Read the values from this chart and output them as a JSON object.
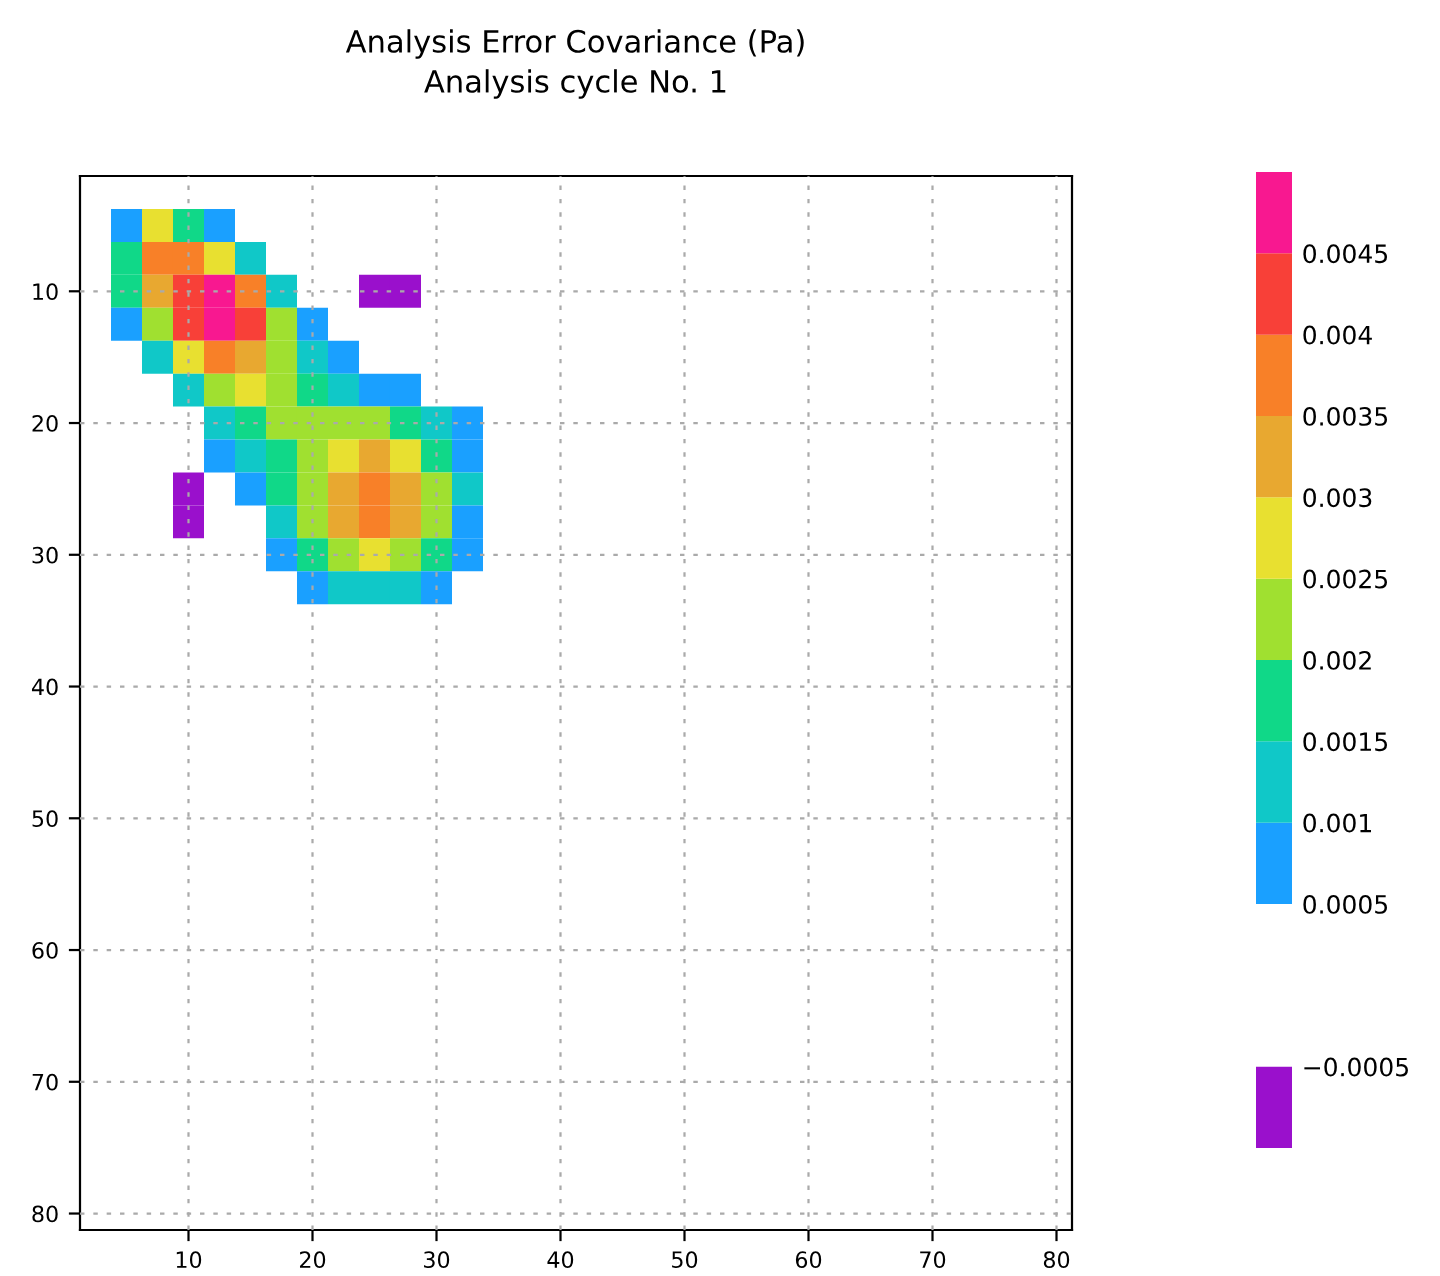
{
  "chart_data": {
    "type": "heatmap",
    "title": "Analysis Error Covariance (Pa)",
    "subtitle": "Analysis cycle No. 1",
    "x": [
      5,
      7.5,
      10,
      12.5,
      15,
      17.5,
      20,
      22.5,
      25,
      27.5,
      30,
      32.5
    ],
    "y": [
      5,
      7.5,
      10,
      12.5,
      15,
      17.5,
      20,
      22.5,
      25,
      27.5,
      30,
      32.5
    ],
    "xlim": [
      1.25,
      81.25
    ],
    "xticks": [
      10,
      20,
      30,
      40,
      50,
      60,
      70,
      80
    ],
    "ylim": [
      81.25,
      1.25
    ],
    "yticks": [
      10,
      20,
      30,
      40,
      50,
      60,
      70,
      80
    ],
    "cells": [
      [
        0.00075,
        0.00275,
        0.00175,
        0.00075,
        null,
        null,
        null,
        null,
        null,
        null,
        null,
        null
      ],
      [
        0.00175,
        0.00375,
        0.00375,
        0.00275,
        0.00125,
        null,
        null,
        null,
        null,
        null,
        null,
        null
      ],
      [
        0.00175,
        0.00325,
        0.00425,
        0.00475,
        0.00375,
        0.00125,
        null,
        null,
        -0.00075,
        -0.00075,
        null,
        null
      ],
      [
        0.00075,
        0.00225,
        0.00425,
        0.00475,
        0.00425,
        0.00225,
        0.00075,
        null,
        null,
        null,
        null,
        null
      ],
      [
        null,
        0.00125,
        0.00275,
        0.00375,
        0.00325,
        0.00225,
        0.00125,
        0.00075,
        null,
        null,
        null,
        null
      ],
      [
        null,
        null,
        0.00125,
        0.00225,
        0.00275,
        0.00225,
        0.00175,
        0.00125,
        0.00075,
        0.00075,
        null,
        null
      ],
      [
        null,
        null,
        null,
        0.00125,
        0.00175,
        0.00225,
        0.00225,
        0.00225,
        0.00225,
        0.00175,
        0.00125,
        0.00075
      ],
      [
        null,
        null,
        null,
        0.00075,
        0.00125,
        0.00175,
        0.00225,
        0.00275,
        0.00325,
        0.00275,
        0.00175,
        0.00075
      ],
      [
        null,
        null,
        -0.00075,
        null,
        0.00075,
        0.00175,
        0.00225,
        0.00325,
        0.00375,
        0.00325,
        0.00225,
        0.00125
      ],
      [
        null,
        null,
        -0.00075,
        null,
        null,
        0.00125,
        0.00225,
        0.00325,
        0.00375,
        0.00325,
        0.00225,
        0.00075
      ],
      [
        null,
        null,
        null,
        null,
        null,
        0.00075,
        0.00175,
        0.00225,
        0.00275,
        0.00225,
        0.00175,
        0.00075
      ],
      [
        null,
        null,
        null,
        null,
        null,
        null,
        0.00075,
        0.00125,
        0.00125,
        0.00125,
        0.00075,
        null
      ]
    ],
    "clim": [
      -0.001,
      0.005
    ],
    "cticks": [
      {
        "value": -0.0005,
        "label": "−0.0005"
      },
      0.0005,
      0.001,
      0.0015,
      0.002,
      0.0025,
      0.003,
      0.0035,
      0.004,
      0.0045
    ],
    "grid": true
  }
}
